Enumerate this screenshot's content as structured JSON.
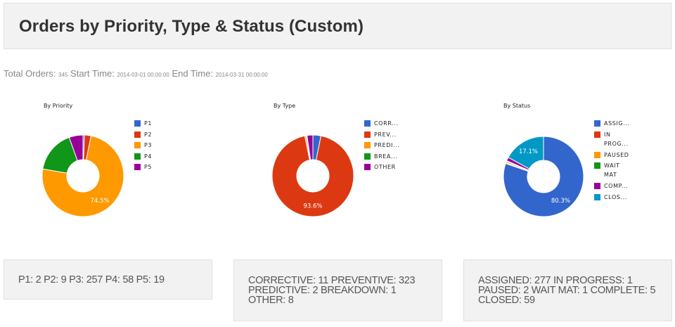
{
  "header": {
    "title": "Orders by Priority, Type & Status (Custom)"
  },
  "summary": {
    "total_label": "Total Orders:",
    "total_value": "345",
    "start_label": "Start Time:",
    "start_value": "2014-03-01 00:00:00",
    "end_label": "End Time:",
    "end_value": "2014-03-31 00:00:00"
  },
  "charts": {
    "priority": {
      "title": "By Priority",
      "legend": [
        "P1",
        "P2",
        "P3",
        "P4",
        "P5"
      ],
      "slice_label": "74.5%"
    },
    "type": {
      "title": "By Type",
      "legend": [
        "CORR...",
        "PREV...",
        "PREDI...",
        "BREA...",
        "OTHER"
      ],
      "slice_label": "93.6%"
    },
    "status": {
      "title": "By Status",
      "legend": [
        "ASSIG...",
        "IN PROG...",
        "PAUSED",
        "WAIT MAT",
        "COMP...",
        "CLOS..."
      ],
      "legend_lines": [
        [
          "ASSIG..."
        ],
        [
          "IN",
          "PROG..."
        ],
        [
          "PAUSED"
        ],
        [
          "WAIT",
          "MAT"
        ],
        [
          "COMP..."
        ],
        [
          "CLOS..."
        ]
      ],
      "slice_label_main": "80.3%",
      "slice_label_secondary": "17.1%"
    }
  },
  "panels": {
    "priority": "P1: 2 P2: 9 P3: 257 P4: 58 P5: 19",
    "type": "CORRECTIVE: 11 PREVENTIVE: 323 PREDICTIVE: 2 BREAKDOWN: 1 OTHER: 8",
    "status": "ASSIGNED: 277 IN PROGRESS: 1 PAUSED: 2 WAIT MAT: 1 COMPLETE: 5 CLOSED: 59"
  },
  "colors": {
    "blue": "#3366cc",
    "red": "#dc3912",
    "orange": "#ff9900",
    "green": "#109618",
    "purple": "#990099",
    "teal": "#0099c6"
  },
  "chart_data": [
    {
      "type": "pie",
      "title": "By Priority",
      "donut": true,
      "categories": [
        "P1",
        "P2",
        "P3",
        "P4",
        "P5"
      ],
      "values": [
        2,
        9,
        257,
        58,
        19
      ],
      "colors": [
        "#3366cc",
        "#dc3912",
        "#ff9900",
        "#109618",
        "#990099"
      ],
      "annotations": [
        "74.5%"
      ],
      "legend_position": "right"
    },
    {
      "type": "pie",
      "title": "By Type",
      "donut": true,
      "categories": [
        "CORRECTIVE",
        "PREVENTIVE",
        "PREDICTIVE",
        "BREAKDOWN",
        "OTHER"
      ],
      "values": [
        11,
        323,
        2,
        1,
        8
      ],
      "colors": [
        "#3366cc",
        "#dc3912",
        "#ff9900",
        "#109618",
        "#990099"
      ],
      "annotations": [
        "93.6%"
      ],
      "legend_position": "right"
    },
    {
      "type": "pie",
      "title": "By Status",
      "donut": true,
      "categories": [
        "ASSIGNED",
        "IN PROGRESS",
        "PAUSED",
        "WAIT MAT",
        "COMPLETE",
        "CLOSED"
      ],
      "values": [
        277,
        1,
        2,
        1,
        5,
        59
      ],
      "colors": [
        "#3366cc",
        "#dc3912",
        "#ff9900",
        "#109618",
        "#990099",
        "#0099c6"
      ],
      "annotations": [
        "80.3%",
        "17.1%"
      ],
      "legend_position": "right"
    }
  ]
}
